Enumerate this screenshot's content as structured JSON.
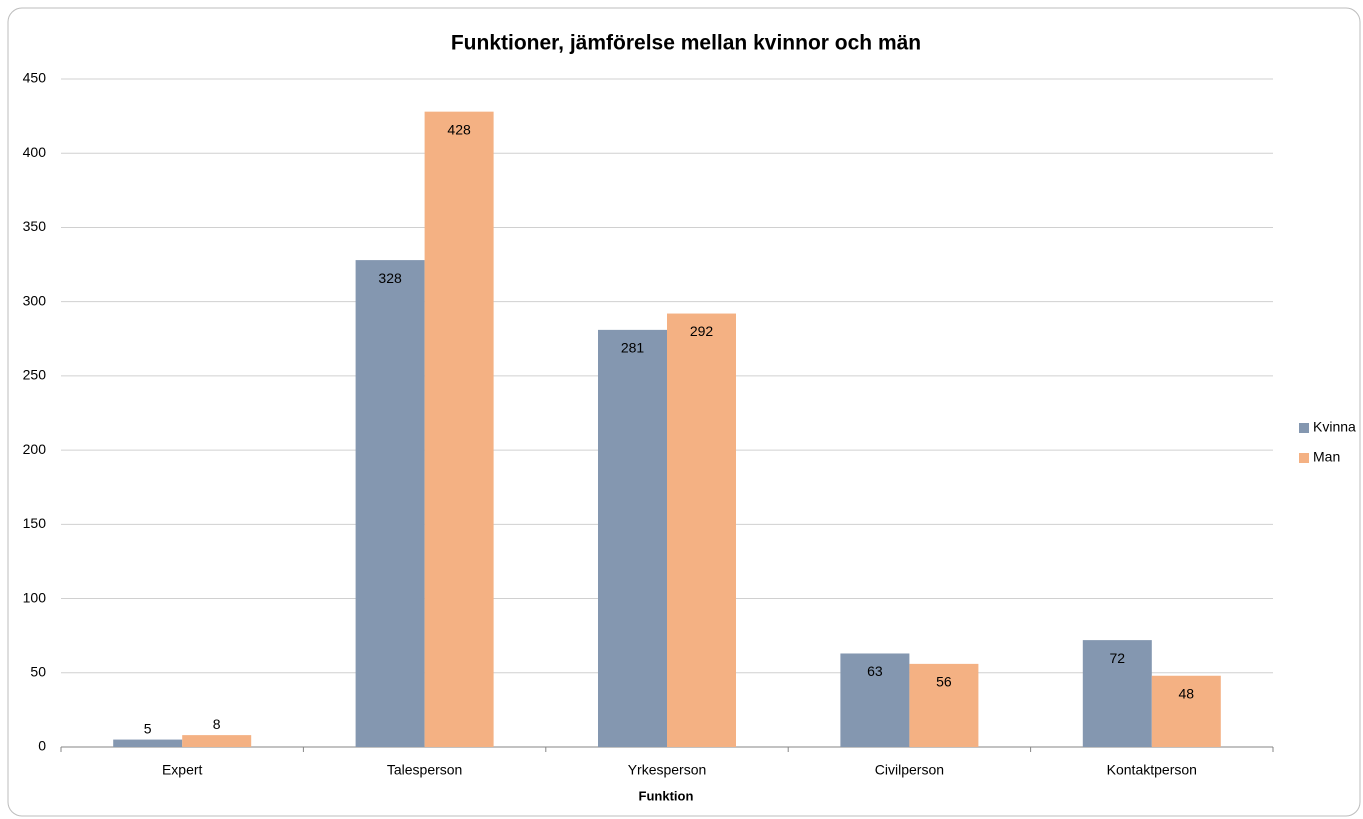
{
  "chart_data": {
    "type": "bar",
    "title": "Funktioner, jämförelse mellan kvinnor och män",
    "xlabel": "Funktion",
    "categories": [
      "Expert",
      "Talesperson",
      "Yrkesperson",
      "Civilperson",
      "Kontaktperson"
    ],
    "series": [
      {
        "name": "Kvinna",
        "color": "#8497b0",
        "values": [
          5,
          328,
          281,
          63,
          72
        ]
      },
      {
        "name": "Man",
        "color": "#f4b183",
        "values": [
          8,
          428,
          292,
          56,
          48
        ]
      }
    ],
    "ylim": [
      0,
      450
    ],
    "yticks": [
      0,
      50,
      100,
      150,
      200,
      250,
      300,
      350,
      400,
      450
    ],
    "grid": true,
    "legend": "right"
  }
}
